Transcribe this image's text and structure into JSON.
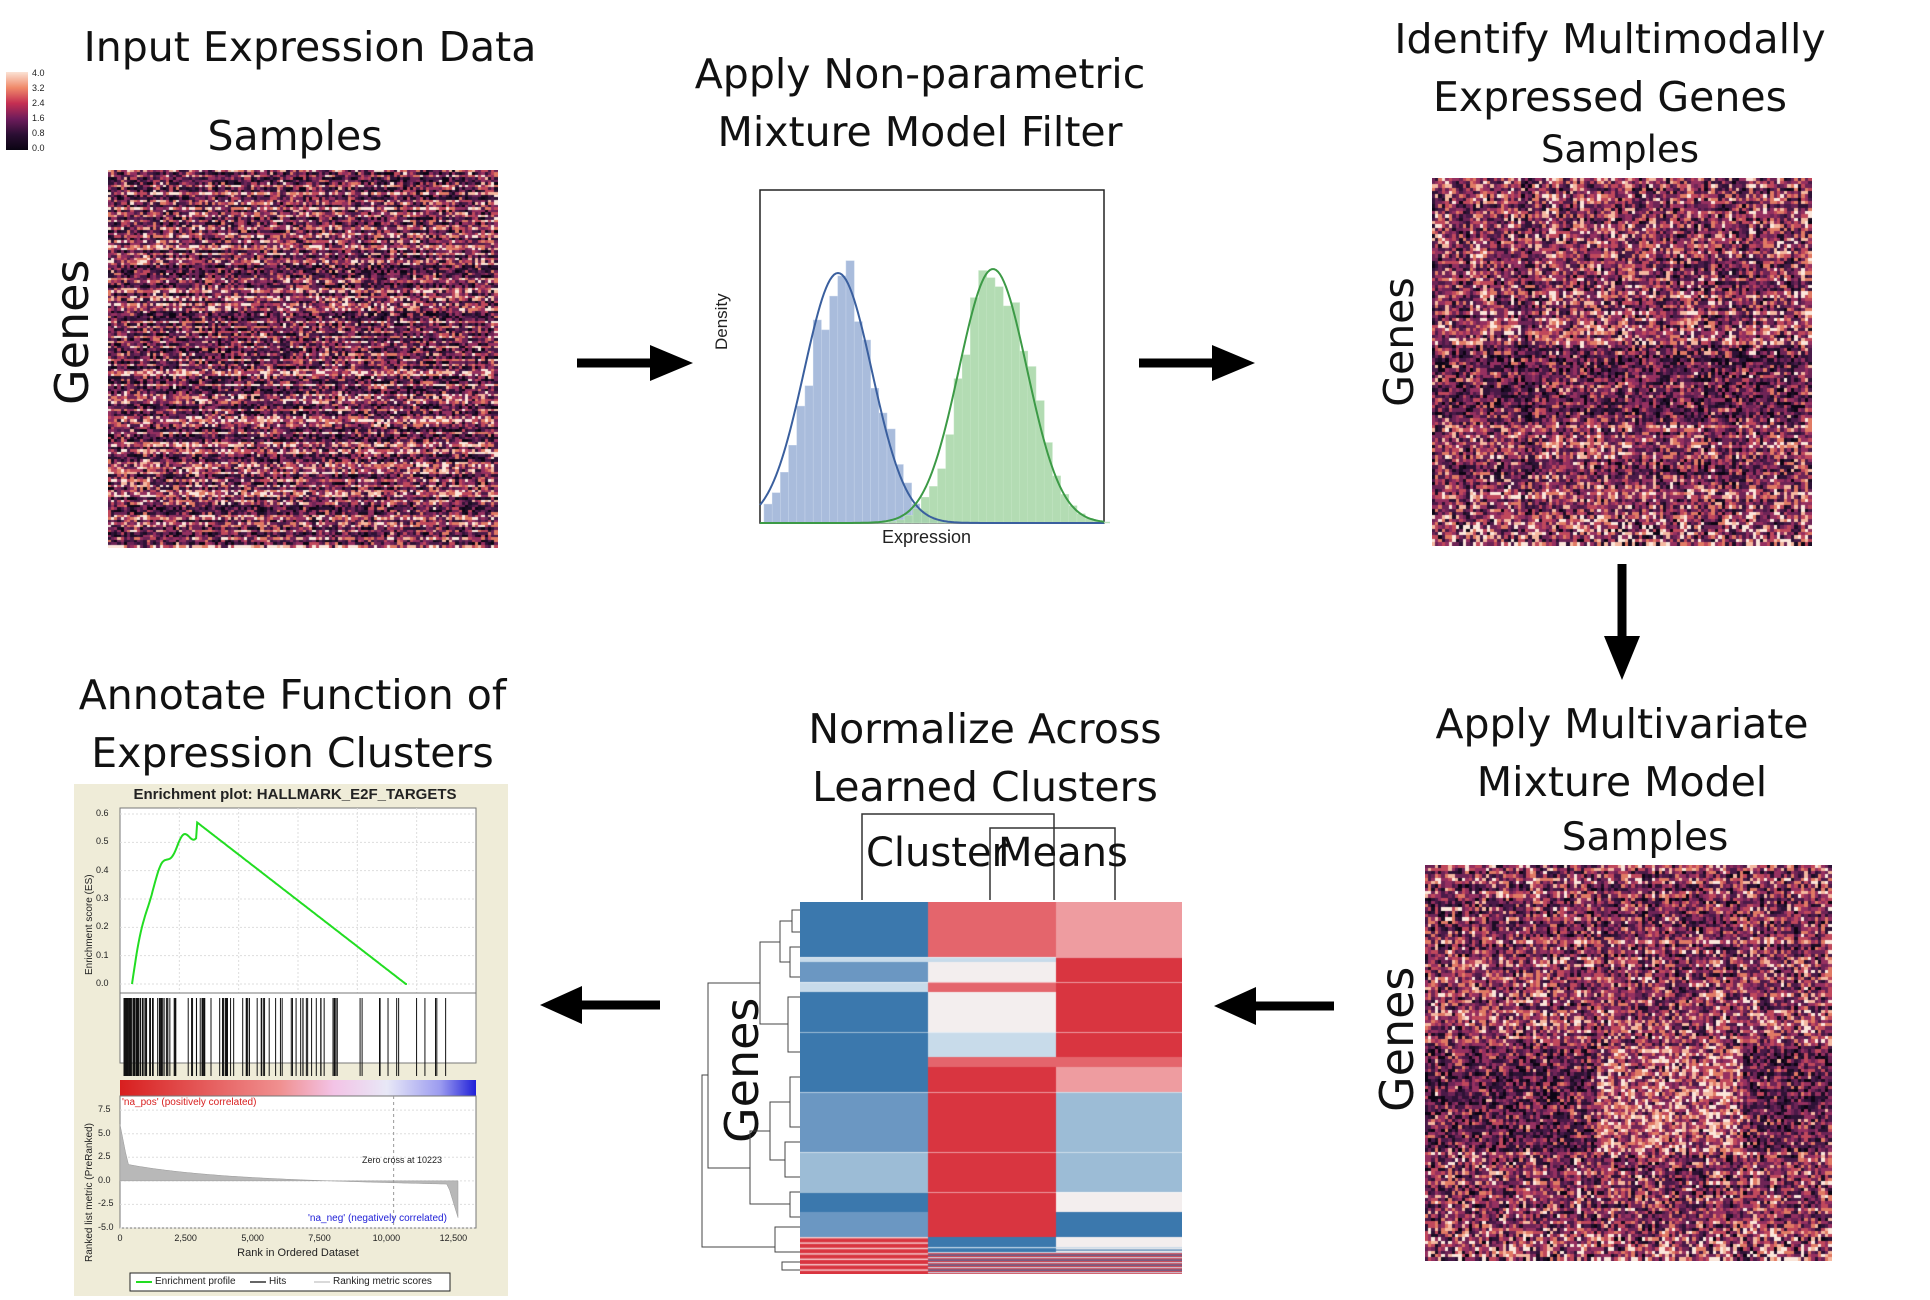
{
  "colorbar": {
    "ticks": [
      "4.0",
      "3.2",
      "2.4",
      "1.6",
      "0.8",
      "0.0"
    ]
  },
  "step1": {
    "title": "Input Expression Data",
    "x_label": "Samples",
    "y_label": "Genes"
  },
  "step2": {
    "title_line1": "Apply Non-parametric",
    "title_line2": "Mixture Model Filter",
    "y_label": "Density",
    "x_label": "Expression"
  },
  "step3": {
    "title_line1": "Identify Multimodally",
    "title_line2": "Expressed Genes",
    "x_label": "Samples",
    "y_label": "Genes"
  },
  "step4": {
    "title_line1": "Apply Multivariate",
    "title_line2": "Mixture Model",
    "x_label": "Samples",
    "y_label": "Genes"
  },
  "step5": {
    "title_line1": "Normalize Across",
    "title_line2": "Learned  Clusters",
    "x_label_left": "Cluster",
    "x_label_right": "Means",
    "y_label": "Genes"
  },
  "step6": {
    "title_line1": "Annotate Function of",
    "title_line2": "Expression Clusters",
    "plot_title": "Enrichment plot: HALLMARK_E2F_TARGETS",
    "es_ylabel": "Enrichment score (ES)",
    "es_ticks": [
      "0.6",
      "0.5",
      "0.4",
      "0.3",
      "0.2",
      "0.1",
      "0.0"
    ],
    "pos_label": "'na_pos' (positively correlated)",
    "neg_label": "'na_neg' (negatively correlated)",
    "zero_cross": "Zero cross at 10223",
    "rank_ylabel": "Ranked list metric (PreRanked)",
    "rank_ticks": [
      "7.5",
      "5.0",
      "2.5",
      "0.0",
      "-2.5",
      "-5.0"
    ],
    "x_ticks": [
      "0",
      "2,500",
      "5,000",
      "7,500",
      "10,000",
      "12,500"
    ],
    "x_label": "Rank in Ordered Dataset",
    "legend": [
      "Enrichment profile",
      "Hits",
      "Ranking metric scores"
    ]
  },
  "colors": {
    "green_es": "#22dd22",
    "red": "#d93540",
    "blue": "#3b78ad",
    "heat_dark": "#1b0d24"
  }
}
